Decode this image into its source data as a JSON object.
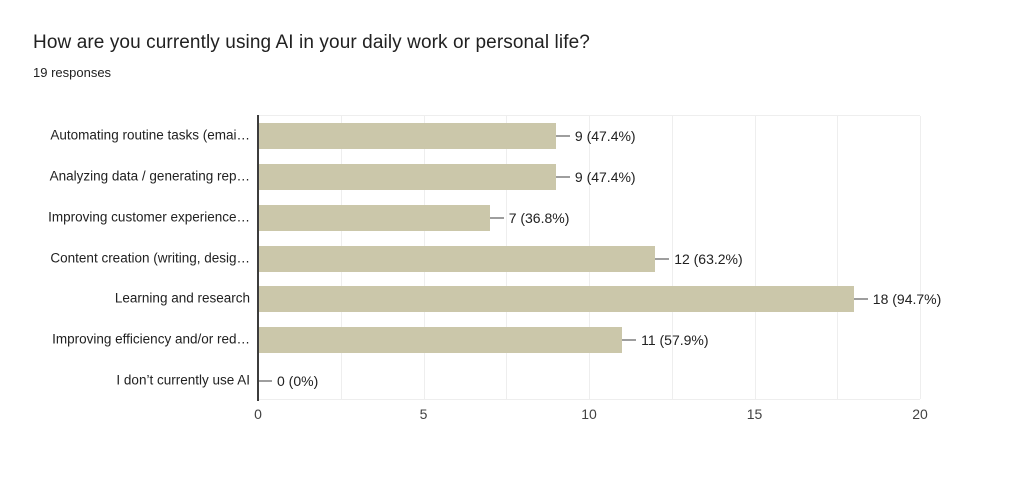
{
  "chart_data": {
    "type": "bar",
    "orientation": "horizontal",
    "title": "How are you currently using AI in your daily work or personal life?",
    "subtitle": "19 responses",
    "total_responses": 19,
    "categories": [
      "Automating routine tasks (emai…",
      "Analyzing data / generating rep…",
      "Improving customer experience…",
      "Content creation (writing, desig…",
      "Learning and research",
      "Improving efficiency and/or red…",
      "I don’t currently use AI"
    ],
    "values": [
      9,
      9,
      7,
      12,
      18,
      11,
      0
    ],
    "value_labels": [
      "9 (47.4%)",
      "9 (47.4%)",
      "7 (36.8%)",
      "12 (63.2%)",
      "18 (94.7%)",
      "11 (57.9%)",
      "0 (0%)"
    ],
    "percentages": [
      47.4,
      47.4,
      36.8,
      63.2,
      94.7,
      57.9,
      0
    ],
    "xlim": [
      0,
      20
    ],
    "xticks": [
      0,
      5,
      10,
      15,
      20
    ],
    "grid": true,
    "grid_interval": 2.5,
    "legend_position": "none",
    "colors": {
      "bar": "#cbc7aa",
      "grid": "#eeeeee",
      "axis_line": "#3c3c3c",
      "connector": "#9e9e9e",
      "text": "#212121",
      "tick_label": "#424242",
      "background": "#ffffff"
    }
  }
}
